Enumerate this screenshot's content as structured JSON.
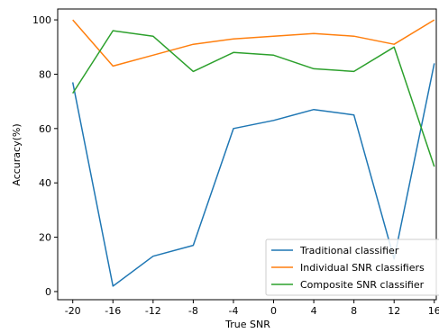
{
  "chart_data": {
    "type": "line",
    "xlabel": "True SNR",
    "ylabel": "Accuracy(%)",
    "x": [
      -20,
      -16,
      -12,
      -8,
      -4,
      0,
      4,
      8,
      12,
      16
    ],
    "x_ticks": [
      "-20",
      "-16",
      "-12",
      "-8",
      "-4",
      "0",
      "4",
      "8",
      "12",
      "16"
    ],
    "y_ticks": [
      "0",
      "20",
      "40",
      "60",
      "80",
      "100"
    ],
    "xlim": [
      -21.5,
      16.2
    ],
    "ylim": [
      -3,
      104
    ],
    "grid": false,
    "legend_position": "lower-right",
    "series": [
      {
        "name": "Traditional classifier",
        "color": "#1f77b4",
        "values": [
          77,
          2,
          13,
          17,
          60,
          63,
          67,
          65,
          12,
          84
        ]
      },
      {
        "name": "Individual SNR classifiers",
        "color": "#ff7f0e",
        "values": [
          100,
          83,
          87,
          91,
          93,
          94,
          95,
          94,
          91,
          100
        ]
      },
      {
        "name": "Composite SNR classifier",
        "color": "#2ca02c",
        "values": [
          73,
          96,
          94,
          81,
          88,
          87,
          82,
          81,
          90,
          46
        ]
      }
    ]
  }
}
